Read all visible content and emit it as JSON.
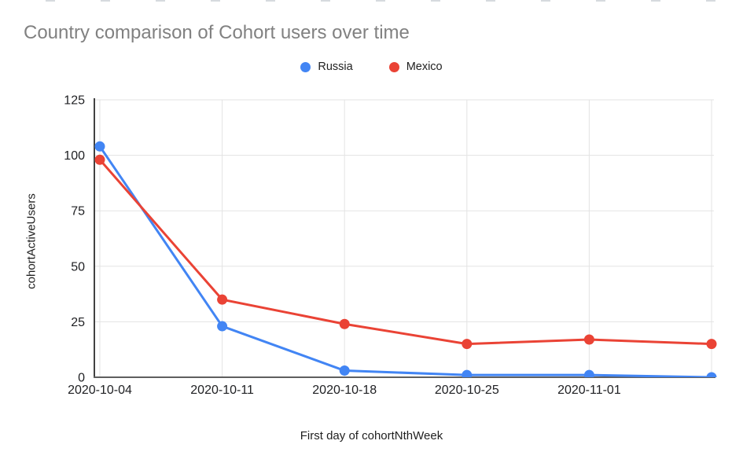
{
  "page": {
    "background": "#ffffff"
  },
  "chart_data": {
    "type": "line",
    "title": "Country comparison of Cohort users over time",
    "xlabel": "First day of cohortNthWeek",
    "ylabel": "cohortActiveUsers",
    "categories": [
      "2020-10-04",
      "2020-10-11",
      "2020-10-18",
      "2020-10-25",
      "2020-11-01",
      ""
    ],
    "x_tick_labels": [
      "2020-10-04",
      "2020-10-11",
      "2020-10-18",
      "2020-10-25",
      "2020-11-01"
    ],
    "series": [
      {
        "name": "Russia",
        "color": "#4285F4",
        "values": [
          104,
          23,
          3,
          1,
          1,
          0
        ]
      },
      {
        "name": "Mexico",
        "color": "#EA4335",
        "values": [
          98,
          35,
          24,
          15,
          17,
          15
        ]
      }
    ],
    "ylim": [
      0,
      125
    ],
    "yticks": [
      0,
      25,
      50,
      75,
      100,
      125
    ],
    "grid": true,
    "legend_position": "top",
    "title_color": "#818181",
    "axis_text_color": "#202124",
    "gridline_color": "#e3e3e3",
    "y_axis_line_color": "#424242",
    "x_axis_line_color": "#5f5f5f"
  }
}
